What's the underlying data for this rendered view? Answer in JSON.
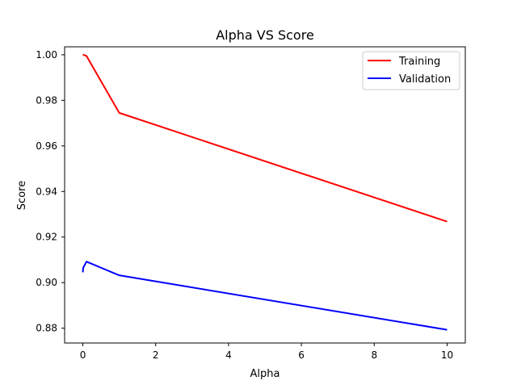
{
  "chart_data": {
    "type": "line",
    "title": "Alpha VS Score",
    "xlabel": "Alpha",
    "ylabel": "Score",
    "xlim": [
      -0.5,
      10.5
    ],
    "ylim": [
      0.8735,
      1.0035
    ],
    "xticks": [
      0,
      2,
      4,
      6,
      8,
      10
    ],
    "xtick_labels": [
      "0",
      "2",
      "4",
      "6",
      "8",
      "10"
    ],
    "yticks": [
      0.88,
      0.9,
      0.92,
      0.94,
      0.96,
      0.98,
      1.0
    ],
    "ytick_labels": [
      "0.88",
      "0.90",
      "0.92",
      "0.94",
      "0.96",
      "0.98",
      "1.00"
    ],
    "grid": false,
    "legend_position": "top-right",
    "series": [
      {
        "name": "Training",
        "color": "#ff0000",
        "x": [
          0.0,
          0.01,
          0.1,
          1.0,
          10.0
        ],
        "y": [
          1.0,
          1.0,
          0.9995,
          0.9745,
          0.9268
        ]
      },
      {
        "name": "Validation",
        "color": "#0000ff",
        "x": [
          0.0,
          0.01,
          0.1,
          1.0,
          10.0
        ],
        "y": [
          0.9045,
          0.9065,
          0.9092,
          0.9032,
          0.8793
        ]
      }
    ]
  }
}
